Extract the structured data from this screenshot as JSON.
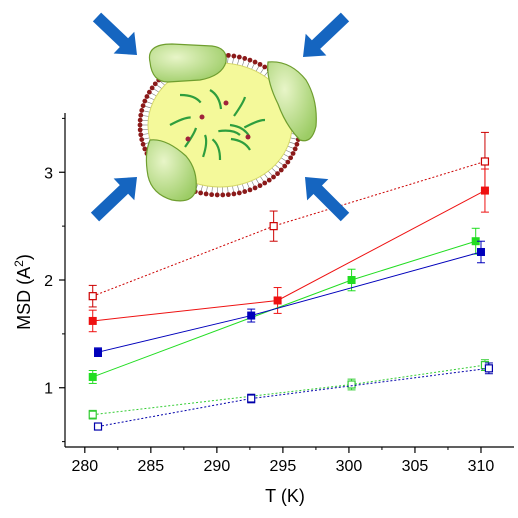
{
  "chart_data": {
    "type": "line",
    "title": "",
    "xlabel": "T (K)",
    "ylabel": "MSD (A",
    "ylabel_superscript": "2",
    "ylabel_close": ")",
    "xlim": [
      278.5,
      312.5
    ],
    "ylim": [
      0.45,
      3.55
    ],
    "xticks": [
      280,
      285,
      290,
      295,
      300,
      305,
      310
    ],
    "yticks": [
      1,
      2,
      3
    ],
    "grid": false,
    "legend": "none",
    "series": [
      {
        "color": "#cc0000",
        "marker": "square-open",
        "line": "dotted",
        "x": [
          280.6,
          294.3,
          310.3
        ],
        "y": [
          1.85,
          2.5,
          3.1
        ],
        "err": [
          0.1,
          0.14,
          0.27
        ]
      },
      {
        "color": "#ee1111",
        "marker": "square-filled",
        "line": "solid",
        "x": [
          280.6,
          294.6,
          310.3
        ],
        "y": [
          1.62,
          1.81,
          2.83
        ],
        "err": [
          0.1,
          0.12,
          0.2
        ]
      },
      {
        "color": "#22dd22",
        "marker": "square-filled",
        "line": "solid",
        "x": [
          280.6,
          300.2,
          309.6
        ],
        "y": [
          1.1,
          2.0,
          2.36
        ],
        "err": [
          0.06,
          0.1,
          0.12
        ]
      },
      {
        "color": "#0000bb",
        "marker": "square-filled",
        "line": "solid",
        "x": [
          281.0,
          292.6,
          310.0
        ],
        "y": [
          1.33,
          1.67,
          2.26
        ],
        "err": [
          0.04,
          0.06,
          0.1
        ]
      },
      {
        "color": "#33cc33",
        "marker": "square-open",
        "line": "dotted",
        "x": [
          280.6,
          300.2,
          310.3
        ],
        "y": [
          0.75,
          1.03,
          1.21
        ],
        "err": [
          0.04,
          0.05,
          0.05
        ]
      },
      {
        "color": "#0000aa",
        "marker": "square-open",
        "line": "dotted",
        "x": [
          281.0,
          292.6,
          310.6
        ],
        "y": [
          0.64,
          0.9,
          1.18
        ],
        "err": [
          0.03,
          0.04,
          0.05
        ]
      }
    ]
  },
  "illustration": {
    "name": "micelle-under-pressure",
    "arrow_color": "#1565c0",
    "core_color": "#f4f99a",
    "lobe_color": "#9ccc65",
    "headgroup_color": "#8b1a1a"
  }
}
